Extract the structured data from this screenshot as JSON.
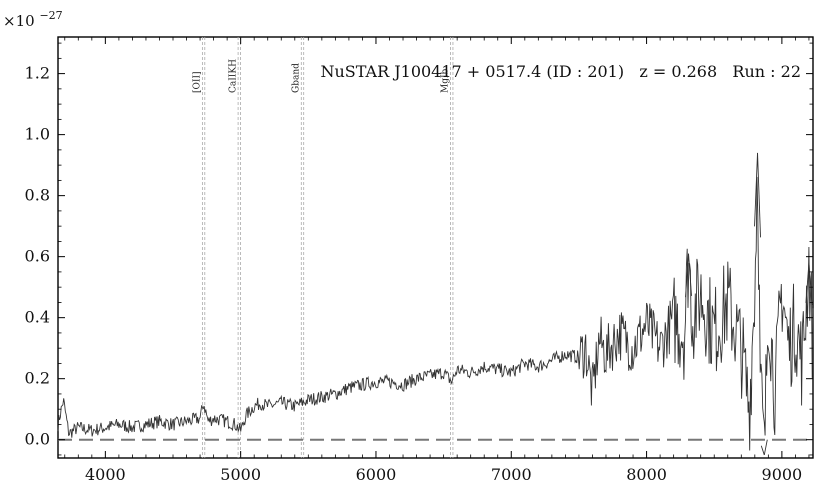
{
  "chart_data": {
    "type": "line",
    "title": "NuSTAR J100417 + 0517.4 (ID : 201)   z = 0.268   Run : 22",
    "xlabel": "",
    "ylabel": "",
    "y_multiplier": "×10",
    "y_multiplier_exponent": "−27",
    "xlim": [
      3650,
      9230
    ],
    "ylim": [
      -0.06,
      1.32
    ],
    "x_ticks": [
      4000,
      5000,
      6000,
      7000,
      8000,
      9000
    ],
    "x_tick_labels": [
      "4000",
      "5000",
      "6000",
      "7000",
      "8000",
      "9000"
    ],
    "y_ticks": [
      0.0,
      0.2,
      0.4,
      0.6,
      0.8,
      1.0,
      1.2
    ],
    "y_tick_labels": [
      "0.0",
      "0.2",
      "0.4",
      "0.6",
      "0.8",
      "1.0",
      "1.2"
    ],
    "zero_line": 0.0,
    "grid": false,
    "colors": {
      "spectrum": "#333333",
      "lines": "#aaaaaa",
      "zero": "#777777"
    },
    "spectral_lines": [
      {
        "label": "[OII]",
        "x": 4726
      },
      {
        "label": "CaIIKH",
        "x": 4990
      },
      {
        "label": "Gband",
        "x": 5457
      },
      {
        "label": "MgIb",
        "x": 6560
      }
    ],
    "spectrum": {
      "x": [
        3650,
        3690,
        3730,
        3800,
        3900,
        4000,
        4100,
        4200,
        4300,
        4400,
        4500,
        4600,
        4700,
        4726,
        4760,
        4800,
        4900,
        4960,
        5000,
        5040,
        5100,
        5150,
        5200,
        5300,
        5400,
        5500,
        5600,
        5700,
        5800,
        5900,
        6000,
        6100,
        6200,
        6300,
        6400,
        6500,
        6560,
        6600,
        6700,
        6800,
        6900,
        7000,
        7100,
        7200,
        7300,
        7400,
        7500,
        7550,
        7600,
        7650,
        7700,
        7800,
        7900,
        8000,
        8100,
        8200,
        8280,
        8310,
        8340,
        8400,
        8500,
        8600,
        8700,
        8760,
        8800,
        8820,
        8840,
        8870,
        8900,
        8950,
        9000,
        9050,
        9100,
        9150,
        9200,
        9230
      ],
      "y": [
        0.05,
        0.13,
        0.02,
        0.04,
        0.03,
        0.04,
        0.05,
        0.04,
        0.05,
        0.06,
        0.05,
        0.06,
        0.07,
        0.12,
        0.06,
        0.07,
        0.06,
        0.05,
        0.03,
        0.08,
        0.11,
        0.12,
        0.11,
        0.12,
        0.11,
        0.13,
        0.14,
        0.15,
        0.17,
        0.18,
        0.19,
        0.19,
        0.18,
        0.2,
        0.21,
        0.22,
        0.19,
        0.23,
        0.22,
        0.24,
        0.23,
        0.22,
        0.25,
        0.24,
        0.26,
        0.28,
        0.27,
        0.3,
        0.15,
        0.33,
        0.28,
        0.35,
        0.3,
        0.38,
        0.3,
        0.4,
        0.35,
        0.61,
        0.4,
        0.48,
        0.35,
        0.45,
        0.3,
        0.1,
        0.5,
        0.94,
        0.2,
        -0.05,
        0.45,
        0.15,
        0.5,
        0.3,
        0.38,
        0.25,
        0.58,
        0.3
      ]
    }
  }
}
